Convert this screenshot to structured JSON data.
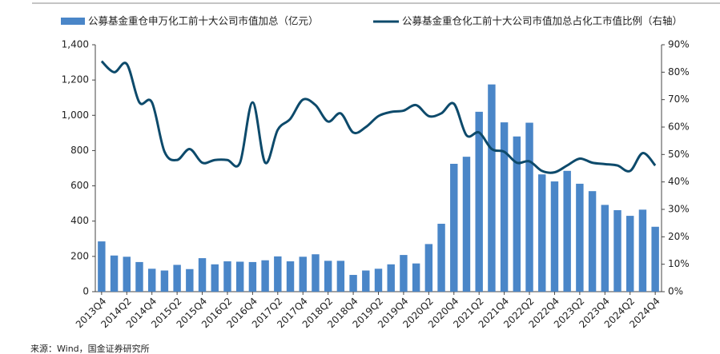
{
  "chart_data": {
    "type": "bar+line",
    "series": [
      {
        "name": "公募基金重仓申万化工前十大公司市值加总（亿元）",
        "type": "bar",
        "color": "#4a86c8",
        "axis": "y",
        "values": [
          285,
          205,
          198,
          168,
          130,
          120,
          152,
          128,
          190,
          155,
          172,
          170,
          168,
          178,
          200,
          172,
          198,
          212,
          175,
          175,
          95,
          120,
          130,
          155,
          208,
          160,
          270,
          385,
          725,
          765,
          1020,
          1175,
          960,
          880,
          958,
          665,
          625,
          685,
          612,
          570,
          492,
          462,
          430,
          465,
          368
        ]
      },
      {
        "name": "公募基金重仓化工前十大公司市值加总占化工市值比例（右轴）",
        "type": "line",
        "color": "#0d4a6b",
        "axis": "y2",
        "values": [
          84,
          80,
          83,
          69,
          69,
          51,
          48,
          52,
          47,
          48,
          48,
          47,
          69,
          47,
          59,
          63,
          70,
          68,
          62,
          65,
          58,
          60,
          64,
          65.5,
          66,
          68,
          64,
          65,
          68.5,
          57,
          58,
          52,
          51,
          47,
          47.5,
          44,
          43.5,
          46,
          48.5,
          47,
          46.5,
          46,
          44,
          50.5,
          46
        ]
      }
    ],
    "categories": [
      "2013Q4",
      null,
      "2014Q2",
      null,
      "2014Q4",
      null,
      "2015Q2",
      null,
      "2015Q4",
      null,
      "2016Q2",
      null,
      "2016Q4",
      null,
      "2017Q2",
      null,
      "2017Q4",
      null,
      "2018Q2",
      null,
      "2018Q4",
      null,
      "2019Q2",
      null,
      "2019Q4",
      null,
      "2020Q2",
      null,
      "2020Q4",
      null,
      "2021Q2",
      null,
      "2021Q4",
      null,
      "2022Q2",
      null,
      "2022Q4",
      null,
      "2023Q2",
      null,
      "2023Q4",
      null,
      "2024Q2",
      null,
      "2024Q4"
    ],
    "ylim": [
      0,
      1400
    ],
    "yticks": [
      0,
      200,
      400,
      600,
      800,
      {
        "value": 1000,
        "label": "1,000"
      },
      {
        "value": 1200,
        "label": "1,200"
      },
      {
        "value": 1400,
        "label": "1,400"
      }
    ],
    "y2lim": [
      0,
      90
    ],
    "y2ticks": [
      {
        "value": 0,
        "label": "0%"
      },
      {
        "value": 10,
        "label": "10%"
      },
      {
        "value": 20,
        "label": "20%"
      },
      {
        "value": 30,
        "label": "30%"
      },
      {
        "value": 40,
        "label": "40%"
      },
      {
        "value": 50,
        "label": "50%"
      },
      {
        "value": 60,
        "label": "60%"
      },
      {
        "value": 70,
        "label": "70%"
      },
      {
        "value": 80,
        "label": "80%"
      },
      {
        "value": 90,
        "label": "90%"
      }
    ],
    "source": "来源：Wind，国金证券研究所"
  }
}
